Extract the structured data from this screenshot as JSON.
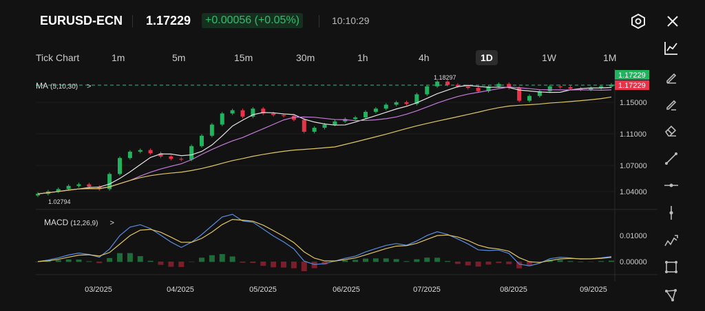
{
  "header": {
    "symbol": "EURUSD-ECN",
    "price": "1.17229",
    "change": "+0.00056 (+0.05%)",
    "time": "10:10:29"
  },
  "timeframes": [
    {
      "label": "Tick Chart"
    },
    {
      "label": "1m"
    },
    {
      "label": "5m"
    },
    {
      "label": "15m"
    },
    {
      "label": "30m"
    },
    {
      "label": "1h"
    },
    {
      "label": "4h"
    },
    {
      "label": "1D",
      "active": true
    },
    {
      "label": "1W"
    },
    {
      "label": "1M"
    }
  ],
  "indicators": {
    "ma_label": "MA",
    "ma_params": "(5,10,30)",
    "macd_label": "MACD",
    "macd_params": "(12,26,9)"
  },
  "colors": {
    "up": "#22b35e",
    "down": "#e8344a",
    "ma5": "#e7e7e7",
    "ma10": "#c77ddb",
    "ma30": "#e3c862",
    "macd": "#5a8de0",
    "signal": "#e3c862"
  },
  "chart_data": {
    "type": "candlestick",
    "closes": [
      1.035,
      1.038,
      1.041,
      1.045,
      1.047,
      1.044,
      1.041,
      1.06,
      1.08,
      1.088,
      1.09,
      1.086,
      1.082,
      1.079,
      1.078,
      1.095,
      1.108,
      1.122,
      1.136,
      1.14,
      1.132,
      1.142,
      1.136,
      1.134,
      1.133,
      1.128,
      1.113,
      1.118,
      1.122,
      1.126,
      1.129,
      1.131,
      1.138,
      1.142,
      1.147,
      1.15,
      1.148,
      1.16,
      1.17,
      1.176,
      1.172,
      1.17,
      1.168,
      1.164,
      1.17,
      1.173,
      1.168,
      1.152,
      1.158,
      1.164,
      1.17,
      1.169,
      1.167,
      1.166,
      1.168,
      1.17,
      1.17229
    ],
    "high_label": "1.18297",
    "low_label": "1.02794",
    "price_ticks": [
      "1.15000",
      "1.11000",
      "1.07000",
      "1.04000"
    ],
    "macd_ticks": [
      "0.01000",
      "0.00000"
    ],
    "x_ticks": [
      "03/2025",
      "04/2025",
      "05/2025",
      "06/2025",
      "07/2025",
      "08/2025",
      "09/2025"
    ],
    "last_bid": "1.17229",
    "last_ask": "1.17229"
  },
  "toolbar": [
    "pencil-icon",
    "highlighter-icon",
    "eraser-icon",
    "trend-line-icon",
    "horizontal-line-icon",
    "vertical-line-icon",
    "path-icon",
    "rectangle-icon",
    "polygon-icon"
  ]
}
